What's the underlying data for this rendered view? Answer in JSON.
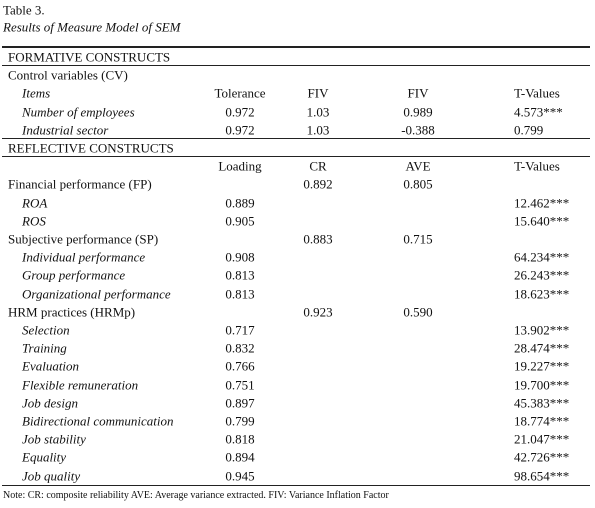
{
  "title": "Table 3.",
  "subtitle": "Results of Measure Model of SEM",
  "table": {
    "formative": {
      "heading": "FORMATIVE CONSTRUCTS",
      "group": {
        "label": "Control variables (CV)",
        "header": [
          "Items",
          "Tolerance",
          "FIV",
          "FIV",
          "T-Values"
        ],
        "rows": [
          [
            "Number of  employees",
            "0.972",
            "1.03",
            "0.989",
            "4.573***"
          ],
          [
            "Industrial sector",
            "0.972",
            "1.03",
            "-0.388",
            "0.799"
          ]
        ]
      }
    },
    "reflective": {
      "heading": "REFLECTIVE CONSTRUCTS",
      "header": [
        "Loading",
        "CR",
        "AVE",
        "T-Values"
      ],
      "groups": [
        {
          "label": "Financial performance (FP)",
          "cr": "0.892",
          "ave": "0.805",
          "rows": [
            [
              "ROA",
              "0.889",
              "12.462***"
            ],
            [
              "ROS",
              "0.905",
              "15.640***"
            ]
          ]
        },
        {
          "label": "Subjective performance (SP)",
          "cr": "0.883",
          "ave": "0.715",
          "rows": [
            [
              "Individual performance",
              "0.908",
              "64.234***"
            ],
            [
              "Group performance",
              "0.813",
              "26.243***"
            ],
            [
              "Organizational performance",
              "0.813",
              "18.623***"
            ]
          ]
        },
        {
          "label": "HRM practices (HRMp)",
          "cr": "0.923",
          "ave": "0.590",
          "rows": [
            [
              "Selection",
              "0.717",
              "13.902***"
            ],
            [
              "Training",
              "0.832",
              "28.474***"
            ],
            [
              "Evaluation",
              "0.766",
              "19.227***"
            ],
            [
              "Flexible remuneration",
              "0.751",
              "19.700***"
            ],
            [
              "Job design",
              "0.897",
              "45.383***"
            ],
            [
              "Bidirectional communication",
              "0.799",
              "18.774***"
            ],
            [
              "Job stability",
              "0.818",
              "21.047***"
            ],
            [
              "Equality",
              "0.894",
              "42.726***"
            ],
            [
              "Job quality",
              "0.945",
              "98.654***"
            ]
          ]
        }
      ]
    }
  },
  "note": "Note: CR: composite reliability AVE: Average variance extracted. FIV: Variance Inflation Factor"
}
